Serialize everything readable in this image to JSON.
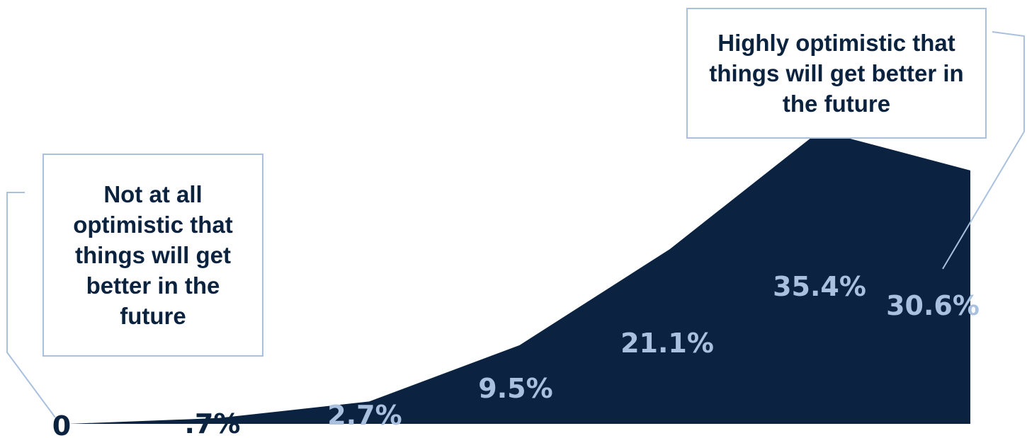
{
  "chart_data": {
    "type": "area",
    "series": [
      {
        "values": [
          0,
          0.7,
          2.7,
          9.5,
          21.1,
          35.4,
          30.6
        ],
        "labels": [
          "0",
          ".7%",
          "2.7%",
          "9.5%",
          "21.1%",
          "35.4%",
          "30.6%"
        ],
        "color": "#0b2340"
      }
    ],
    "ylim": [
      0,
      37
    ],
    "grid": false,
    "annotations": {
      "low_end": "Not at all optimistic that things will get better in the future",
      "high_end": "Highly optimistic that things will get better in the future"
    },
    "colors": {
      "fill": "#0b2340",
      "label_inside": "#a9c1de",
      "label_outside": "#0c2340",
      "callout_border": "#a9c1de"
    }
  }
}
